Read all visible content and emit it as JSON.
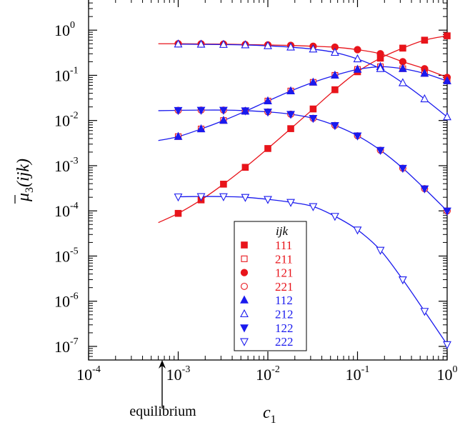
{
  "chart_data": {
    "type": "line",
    "xscale": "log",
    "yscale": "log",
    "xlim": [
      0.0001,
      1
    ],
    "ylim": [
      5e-08,
      5
    ],
    "xlabel_base": "c",
    "xlabel_sub": "1",
    "ylabel_mu": "μ",
    "ylabel_sub": "3",
    "ylabel_args": "(ijk)",
    "x_ticks": [
      {
        "value": 0.0001,
        "base": "10",
        "exp": "-4"
      },
      {
        "value": 0.001,
        "base": "10",
        "exp": "-3"
      },
      {
        "value": 0.01,
        "base": "10",
        "exp": "-2"
      },
      {
        "value": 0.1,
        "base": "10",
        "exp": "-1"
      },
      {
        "value": 1,
        "base": "10",
        "exp": "0"
      }
    ],
    "y_ticks": [
      {
        "value": 1e-07,
        "base": "10",
        "exp": "-7"
      },
      {
        "value": 1e-06,
        "base": "10",
        "exp": "-6"
      },
      {
        "value": 1e-05,
        "base": "10",
        "exp": "-5"
      },
      {
        "value": 0.0001,
        "base": "10",
        "exp": "-4"
      },
      {
        "value": 0.001,
        "base": "10",
        "exp": "-3"
      },
      {
        "value": 0.01,
        "base": "10",
        "exp": "-2"
      },
      {
        "value": 0.1,
        "base": "10",
        "exp": "-1"
      },
      {
        "value": 1,
        "base": "10",
        "exp": "0"
      }
    ],
    "annotation": {
      "text": "equilibrium",
      "x": 0.0006
    },
    "legend": {
      "title": "ijk",
      "position": "lower-center"
    },
    "colors": {
      "red": "#e8141b",
      "blue": "#1a1aee"
    },
    "lines": [
      {
        "name": "111-line",
        "color": "red",
        "x": [
          0.0006,
          0.001,
          0.0018,
          0.0032,
          0.0056,
          0.01,
          0.018,
          0.032,
          0.056,
          0.1,
          0.18,
          0.32,
          0.56,
          1
        ],
        "y": [
          5.5e-05,
          8.8e-05,
          0.000175,
          0.00039,
          0.00092,
          0.0024,
          0.0066,
          0.018,
          0.048,
          0.12,
          0.24,
          0.4,
          0.6,
          0.75
        ]
      },
      {
        "name": "121-line",
        "color": "red",
        "x": [
          0.0006,
          0.001,
          0.0018,
          0.0032,
          0.0056,
          0.01,
          0.018,
          0.032,
          0.056,
          0.1,
          0.18,
          0.32,
          0.56,
          1
        ],
        "y": [
          0.5,
          0.5,
          0.495,
          0.49,
          0.48,
          0.47,
          0.46,
          0.44,
          0.42,
          0.37,
          0.3,
          0.2,
          0.14,
          0.09
        ]
      },
      {
        "name": "112-line",
        "color": "blue",
        "x": [
          0.0006,
          0.001,
          0.0018,
          0.0032,
          0.0056,
          0.01,
          0.018,
          0.032,
          0.056,
          0.1,
          0.18,
          0.32,
          0.56,
          1
        ],
        "y": [
          0.0036,
          0.0044,
          0.0065,
          0.01,
          0.016,
          0.027,
          0.045,
          0.07,
          0.1,
          0.135,
          0.155,
          0.14,
          0.11,
          0.075
        ]
      },
      {
        "name": "122-line",
        "color": "blue",
        "x": [
          0.0006,
          0.001,
          0.0018,
          0.0032,
          0.0056,
          0.01,
          0.018,
          0.032,
          0.056,
          0.1,
          0.18,
          0.32,
          0.56,
          1
        ],
        "y": [
          0.0165,
          0.0168,
          0.017,
          0.017,
          0.0165,
          0.0155,
          0.0138,
          0.0112,
          0.0078,
          0.0046,
          0.0022,
          0.00088,
          0.00031,
          0.0001
        ]
      },
      {
        "name": "212-line",
        "color": "blue",
        "x": [
          0.001,
          0.0018,
          0.0032,
          0.0056,
          0.01,
          0.018,
          0.032,
          0.056,
          0.1,
          0.18,
          0.32,
          0.56,
          1
        ],
        "y": [
          0.49,
          0.485,
          0.48,
          0.47,
          0.45,
          0.42,
          0.38,
          0.32,
          0.23,
          0.14,
          0.068,
          0.03,
          0.012
        ]
      },
      {
        "name": "222-line",
        "color": "blue",
        "x": [
          0.001,
          0.0018,
          0.0032,
          0.0056,
          0.01,
          0.018,
          0.032,
          0.056,
          0.1,
          0.18,
          0.32,
          0.56,
          1
        ],
        "y": [
          0.000205,
          0.000208,
          0.000207,
          0.0002,
          0.00018,
          0.000155,
          0.000125,
          7.6e-05,
          3.8e-05,
          1.35e-05,
          3e-06,
          6e-07,
          1.1e-07
        ]
      }
    ],
    "series": [
      {
        "label": "111",
        "color": "red",
        "marker": "square",
        "filled": true,
        "x": [
          0.001,
          0.0018,
          0.0032,
          0.0056,
          0.01,
          0.018,
          0.032,
          0.056,
          0.1,
          0.18,
          0.32,
          0.56,
          1
        ],
        "y": [
          8.8e-05,
          0.000175,
          0.00039,
          0.00092,
          0.0024,
          0.0066,
          0.018,
          0.048,
          0.12,
          0.24,
          0.4,
          0.6,
          0.75
        ]
      },
      {
        "label": "211",
        "color": "red",
        "marker": "square",
        "filled": false,
        "x": [
          0.001,
          0.0018,
          0.0032,
          0.0056,
          0.01,
          0.018,
          0.032,
          0.056,
          0.1,
          0.18,
          0.32,
          0.56,
          1
        ],
        "y": [
          0.0044,
          0.0065,
          0.01,
          0.016,
          0.027,
          0.045,
          0.07,
          0.1,
          0.135,
          0.155,
          0.14,
          0.11,
          0.075
        ]
      },
      {
        "label": "121",
        "color": "red",
        "marker": "circle",
        "filled": true,
        "x": [
          0.001,
          0.0018,
          0.0032,
          0.0056,
          0.01,
          0.018,
          0.032,
          0.056,
          0.1,
          0.18,
          0.32,
          0.56,
          1
        ],
        "y": [
          0.5,
          0.495,
          0.49,
          0.48,
          0.47,
          0.46,
          0.44,
          0.42,
          0.37,
          0.3,
          0.2,
          0.14,
          0.09
        ]
      },
      {
        "label": "221",
        "color": "red",
        "marker": "circle",
        "filled": false,
        "x": [
          0.001,
          0.0018,
          0.0032,
          0.0056,
          0.01,
          0.018,
          0.032,
          0.056,
          0.1,
          0.18,
          0.32,
          0.56,
          1
        ],
        "y": [
          0.0168,
          0.017,
          0.017,
          0.0165,
          0.0155,
          0.0138,
          0.0112,
          0.0078,
          0.0046,
          0.0022,
          0.00088,
          0.00031,
          0.0001
        ]
      },
      {
        "label": "112",
        "color": "blue",
        "marker": "triangle-up",
        "filled": true,
        "x": [
          0.001,
          0.0018,
          0.0032,
          0.0056,
          0.01,
          0.018,
          0.032,
          0.056,
          0.1,
          0.18,
          0.32,
          0.56,
          1
        ],
        "y": [
          0.0044,
          0.0065,
          0.01,
          0.016,
          0.027,
          0.045,
          0.07,
          0.1,
          0.135,
          0.155,
          0.14,
          0.11,
          0.075
        ]
      },
      {
        "label": "212",
        "color": "blue",
        "marker": "triangle-up",
        "filled": false,
        "x": [
          0.001,
          0.0018,
          0.0032,
          0.0056,
          0.01,
          0.018,
          0.032,
          0.056,
          0.1,
          0.18,
          0.32,
          0.56,
          1
        ],
        "y": [
          0.49,
          0.485,
          0.48,
          0.47,
          0.45,
          0.42,
          0.38,
          0.32,
          0.23,
          0.14,
          0.068,
          0.03,
          0.012
        ]
      },
      {
        "label": "122",
        "color": "blue",
        "marker": "triangle-down",
        "filled": true,
        "x": [
          0.001,
          0.0018,
          0.0032,
          0.0056,
          0.01,
          0.018,
          0.032,
          0.056,
          0.1,
          0.18,
          0.32,
          0.56,
          1
        ],
        "y": [
          0.0168,
          0.017,
          0.017,
          0.0165,
          0.0155,
          0.0138,
          0.0112,
          0.0078,
          0.0046,
          0.0022,
          0.00088,
          0.00031,
          0.0001
        ]
      },
      {
        "label": "222",
        "color": "blue",
        "marker": "triangle-down",
        "filled": false,
        "x": [
          0.001,
          0.0018,
          0.0032,
          0.0056,
          0.01,
          0.018,
          0.032,
          0.056,
          0.1,
          0.18,
          0.32,
          0.56,
          1
        ],
        "y": [
          0.000205,
          0.000208,
          0.000207,
          0.0002,
          0.00018,
          0.000155,
          0.000125,
          7.6e-05,
          3.8e-05,
          1.35e-05,
          3e-06,
          6e-07,
          1.1e-07
        ]
      }
    ]
  }
}
